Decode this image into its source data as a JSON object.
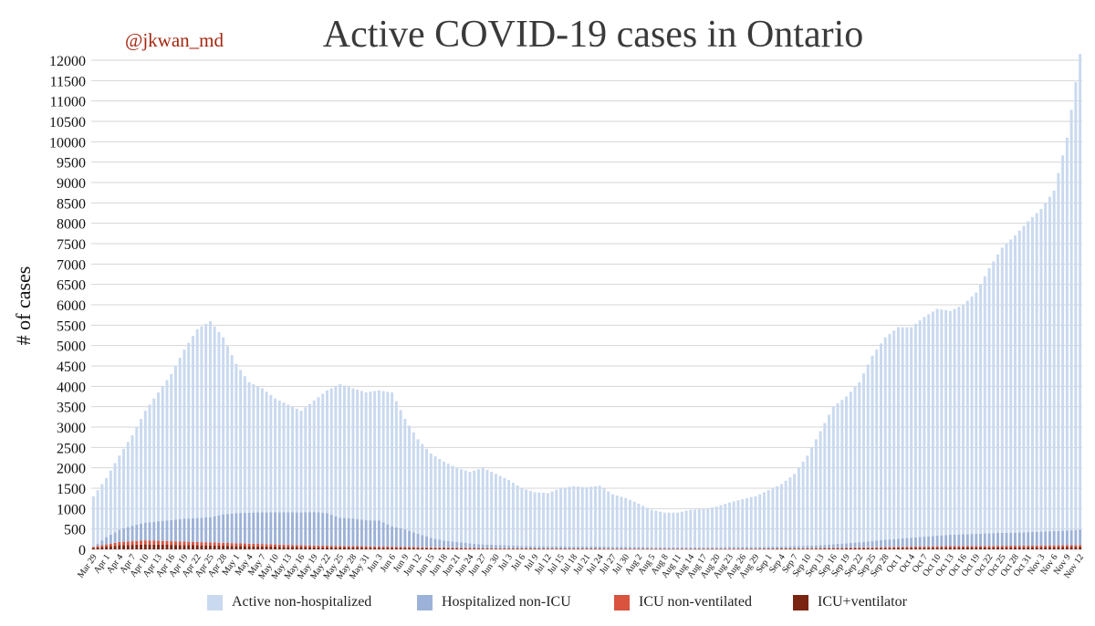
{
  "handle": "@jkwan_md",
  "chart_data": {
    "type": "bar",
    "stacked": true,
    "title": "Active COVID-19 cases in Ontario",
    "ylabel": "# of cases",
    "xlabel": "",
    "ylim": [
      0,
      12000
    ],
    "yticks": [
      0,
      500,
      1000,
      1500,
      2000,
      2500,
      3000,
      3500,
      4000,
      4500,
      5000,
      5500,
      6000,
      6500,
      7000,
      7500,
      8000,
      8500,
      9000,
      9500,
      10000,
      10500,
      11000,
      11500,
      12000
    ],
    "grid": true,
    "legend_position": "bottom",
    "x_tick_labels": [
      "Mar 29",
      "Apr 1",
      "Apr 4",
      "Apr 7",
      "Apr 10",
      "Apr 13",
      "Apr 16",
      "Apr 19",
      "Apr 22",
      "Apr 25",
      "Apr 28",
      "May 1",
      "May 4",
      "May 7",
      "May 10",
      "May 13",
      "May 16",
      "May 19",
      "May 22",
      "May 25",
      "May 28",
      "May 31",
      "Jun 3",
      "Jun 6",
      "Jun 9",
      "Jun 12",
      "Jun 15",
      "Jun 18",
      "Jun 21",
      "Jun 24",
      "Jun 27",
      "Jun 30",
      "Jul 3",
      "Jul 6",
      "Jul 9",
      "Jul 12",
      "Jul 15",
      "Jul 18",
      "Jul 21",
      "Jul 24",
      "Jul 27",
      "Jul 30",
      "Aug 2",
      "Aug 5",
      "Aug 8",
      "Aug 11",
      "Aug 14",
      "Aug 17",
      "Aug 20",
      "Aug 23",
      "Aug 26",
      "Aug 29",
      "Sep 1",
      "Sep 4",
      "Sep 7",
      "Sep 10",
      "Sep 13",
      "Sep 16",
      "Sep 19",
      "Sep 22",
      "Sep 25",
      "Sep 28",
      "Oct 1",
      "Oct 4",
      "Oct 7",
      "Oct 10",
      "Oct 13",
      "Oct 16",
      "Oct 19",
      "Oct 22",
      "Oct 25",
      "Oct 28",
      "Oct 31",
      "Nov 3",
      "Nov 6",
      "Nov 9",
      "Nov 12"
    ],
    "colors": {
      "active_non_hospitalized": "#c9d9ef",
      "hospitalized_non_icu": "#9cb2d8",
      "icu_non_ventilated": "#d9533e",
      "icu_ventilator": "#7a2412",
      "grid": "#d6d6d6"
    },
    "series": [
      {
        "name": "Active non-hospitalized",
        "key": "active_non_hospitalized",
        "color": "#c9d9ef"
      },
      {
        "name": "Hospitalized non-ICU",
        "key": "hospitalized_non_icu",
        "color": "#9cb2d8"
      },
      {
        "name": "ICU non-ventilated",
        "key": "icu_non_ventilated",
        "color": "#d9533e"
      },
      {
        "name": "ICU+ventilator",
        "key": "icu_ventilator",
        "color": "#7a2412"
      }
    ],
    "totals_every_3_days": [
      1300,
      1750,
      2300,
      2800,
      3400,
      3850,
      4300,
      4900,
      5400,
      5600,
      5200,
      4550,
      4100,
      3950,
      3700,
      3550,
      3400,
      3650,
      3900,
      4050,
      3950,
      3850,
      3900,
      3850,
      3200,
      2700,
      2350,
      2150,
      2000,
      1900,
      2000,
      1850,
      1700,
      1500,
      1400,
      1380,
      1500,
      1550,
      1520,
      1560,
      1350,
      1260,
      1120,
      970,
      900,
      900,
      970,
      990,
      1050,
      1150,
      1230,
      1300,
      1450,
      1600,
      1850,
      2300,
      2900,
      3500,
      3750,
      4100,
      4750,
      5200,
      5450,
      5450,
      5700,
      5900,
      5850,
      6000,
      6300,
      6900,
      7400,
      7700,
      8050,
      8350,
      8800,
      10100,
      12150
    ],
    "hospitalized_non_icu_every_3_days": [
      0,
      180,
      300,
      380,
      430,
      480,
      520,
      560,
      590,
      620,
      700,
      740,
      760,
      780,
      790,
      800,
      810,
      820,
      800,
      690,
      680,
      640,
      640,
      500,
      430,
      330,
      230,
      170,
      140,
      110,
      90,
      80,
      70,
      60,
      55,
      55,
      55,
      50,
      50,
      50,
      45,
      45,
      40,
      35,
      35,
      35,
      35,
      35,
      35,
      40,
      40,
      40,
      45,
      50,
      55,
      60,
      70,
      90,
      110,
      130,
      150,
      180,
      200,
      220,
      240,
      260,
      280,
      290,
      300,
      310,
      320,
      320,
      330,
      340,
      350,
      360,
      380
    ],
    "icu_every_3_days": [
      60,
      120,
      180,
      200,
      220,
      210,
      200,
      190,
      180,
      170,
      160,
      150,
      140,
      130,
      120,
      110,
      100,
      95,
      90,
      85,
      80,
      75,
      70,
      65,
      60,
      55,
      50,
      45,
      40,
      35,
      30,
      28,
      26,
      24,
      22,
      20,
      20,
      20,
      20,
      20,
      18,
      18,
      18,
      16,
      16,
      16,
      16,
      16,
      16,
      16,
      18,
      18,
      20,
      22,
      24,
      28,
      32,
      36,
      40,
      45,
      50,
      55,
      60,
      65,
      70,
      75,
      78,
      80,
      82,
      85,
      88,
      90,
      92,
      95,
      98,
      100,
      105
    ]
  },
  "legend": {
    "items": [
      {
        "label": "Active non-hospitalized",
        "color": "#c9d9ef"
      },
      {
        "label": "Hospitalized non-ICU",
        "color": "#9cb2d8"
      },
      {
        "label": "ICU non-ventilated",
        "color": "#d9533e"
      },
      {
        "label": "ICU+ventilator",
        "color": "#7a2412"
      }
    ]
  }
}
